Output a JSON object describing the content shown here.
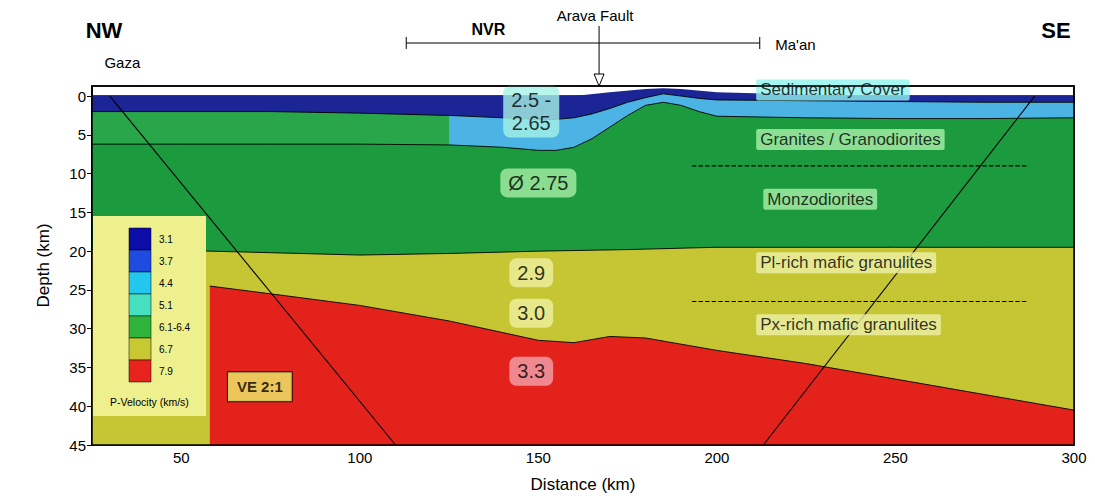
{
  "chart_data": {
    "type": "area",
    "x_label": "Distance (km)",
    "y_label": "Depth (km)",
    "xlim": [
      25,
      300
    ],
    "xticks": [
      50,
      100,
      150,
      200,
      250,
      300
    ],
    "ylim": [
      45,
      -1.3
    ],
    "yticks": [
      0,
      5,
      10,
      15,
      20,
      25,
      30,
      35,
      40,
      45
    ],
    "grid": false,
    "corner_labels": {
      "left": "NW",
      "right": "SE"
    },
    "series": [
      {
        "type": "area",
        "color": "#1c2596",
        "line_style": "none",
        "x": [
          25,
          50,
          75,
          100,
          125,
          150,
          160,
          170,
          180,
          185,
          190,
          200,
          225,
          250,
          275,
          300
        ],
        "values": [
          0,
          0,
          0,
          0,
          0,
          0,
          0,
          -0.5,
          -0.9,
          -1.0,
          -0.9,
          -0.5,
          -0.2,
          0,
          0,
          0
        ]
      },
      {
        "type": "area",
        "color": "#2aa64a",
        "line_style": "solid",
        "x": [
          25,
          50,
          75,
          100,
          125,
          140,
          150,
          155,
          160,
          165,
          170,
          175,
          180,
          185,
          190,
          195,
          200,
          225,
          250,
          275,
          300
        ],
        "values": [
          2.0,
          2.0,
          2.0,
          2.2,
          2.5,
          2.8,
          3.0,
          3.0,
          2.8,
          2.3,
          1.6,
          0.8,
          0.2,
          -0.3,
          0.0,
          0.3,
          0.5,
          0.6,
          0.7,
          0.8,
          0.8
        ]
      },
      {
        "type": "area",
        "color": "#4cb4e4",
        "line_style": "none",
        "x": [
          125,
          140,
          150,
          155,
          160,
          165,
          170,
          175,
          180,
          185,
          190,
          195,
          200,
          225,
          250,
          275,
          300
        ],
        "values": [
          2.5,
          2.8,
          3.0,
          3.0,
          2.8,
          2.3,
          1.6,
          0.8,
          0.2,
          -0.3,
          0.0,
          0.3,
          0.5,
          0.6,
          0.7,
          0.8,
          0.8
        ]
      },
      {
        "type": "area",
        "color": "#1b9a3e",
        "line_style": "solid",
        "x": [
          25,
          50,
          75,
          100,
          125,
          140,
          150,
          155,
          160,
          165,
          170,
          175,
          180,
          185,
          190,
          195,
          200,
          225,
          250,
          275,
          300
        ],
        "values": [
          6.2,
          6.2,
          6.2,
          6.2,
          6.3,
          6.6,
          7.0,
          7.0,
          6.6,
          5.5,
          4.0,
          2.5,
          1.2,
          0.8,
          1.2,
          2.0,
          2.6,
          2.8,
          2.9,
          2.9,
          2.8
        ]
      },
      {
        "type": "area",
        "color": "#c6c634",
        "line_style": "solid",
        "x": [
          25,
          50,
          75,
          100,
          125,
          150,
          175,
          200,
          225,
          250,
          275,
          300
        ],
        "values": [
          19.8,
          19.9,
          20.2,
          20.5,
          20.3,
          20.0,
          19.8,
          19.5,
          19.5,
          19.5,
          19.5,
          19.5
        ]
      },
      {
        "type": "area",
        "color": "#e4221c",
        "line_style": "solid",
        "x": [
          58,
          75,
          100,
          125,
          140,
          150,
          160,
          170,
          180,
          190,
          200,
          225,
          250,
          275,
          300
        ],
        "values": [
          24.5,
          25.5,
          27.0,
          29.0,
          30.5,
          31.5,
          31.8,
          31.0,
          31.2,
          32.0,
          32.8,
          34.5,
          36.5,
          38.5,
          40.5
        ]
      }
    ],
    "lines": [
      {
        "type": "line",
        "x": [
          193,
          287
        ],
        "values": [
          9,
          9
        ],
        "line_style": "dashed"
      },
      {
        "type": "line",
        "x": [
          193,
          287
        ],
        "values": [
          26.5,
          26.5
        ],
        "line_style": "dashed"
      },
      {
        "type": "line",
        "x": [
          30,
          110
        ],
        "values": [
          0,
          45
        ],
        "line_style": "solid"
      },
      {
        "type": "line",
        "x": [
          289,
          213
        ],
        "values": [
          0,
          45
        ],
        "line_style": "solid"
      }
    ],
    "layer_labels": [
      {
        "text": "2.5 - 2.65",
        "x": 148,
        "y": 2.0,
        "color": "#a6f2e6"
      },
      {
        "text": "Ø 2.75",
        "x": 150,
        "y": 11.2,
        "color": "#a6eea6"
      },
      {
        "text": "2.9",
        "x": 148,
        "y": 22.8,
        "color": "#eef0a0"
      },
      {
        "text": "3.0",
        "x": 148,
        "y": 28.0,
        "color": "#eef0a0"
      },
      {
        "text": "3.3",
        "x": 148,
        "y": 35.5,
        "color": "#f2a4ac"
      }
    ],
    "unit_labels": [
      {
        "text": "Sedimentary Cover",
        "x": 211,
        "y": -0.8,
        "color": "#8ef2ee"
      },
      {
        "text": "Granites / Granodiorites",
        "x": 211,
        "y": 5.6,
        "color": "#aaf0aa"
      },
      {
        "text": "Monzodiorites",
        "x": 213,
        "y": 13.3,
        "color": "#aaf0aa"
      },
      {
        "text": "Pl-rich mafic granulites",
        "x": 211,
        "y": 21.5,
        "color": "#eef0a8"
      },
      {
        "text": "Px-rich mafic granulites",
        "x": 211,
        "y": 29.5,
        "color": "#eef0a8"
      }
    ],
    "scale_note": {
      "text": "VE 2:1",
      "x": 72,
      "y": 37.5,
      "color": "#eef06a"
    },
    "top_labels": [
      {
        "text": "Gaza",
        "x": 33.5
      },
      {
        "text": "NVR",
        "x": 136,
        "span": [
          113,
          212
        ]
      },
      {
        "text": "Arava Fault",
        "x": 167,
        "marker": "arrow"
      },
      {
        "text": "Ma'an",
        "x": 222
      }
    ],
    "colorbar": {
      "title": "P-Velocity (km/s)",
      "labels": [
        3.1,
        3.7,
        4.4,
        5.1,
        "6.1-6.4",
        6.7,
        7.9
      ],
      "colors": [
        "#0c0ca8",
        "#1e4be0",
        "#22c6ee",
        "#46e0c0",
        "#2eb43c",
        "#c8c832",
        "#e8231e"
      ]
    }
  }
}
